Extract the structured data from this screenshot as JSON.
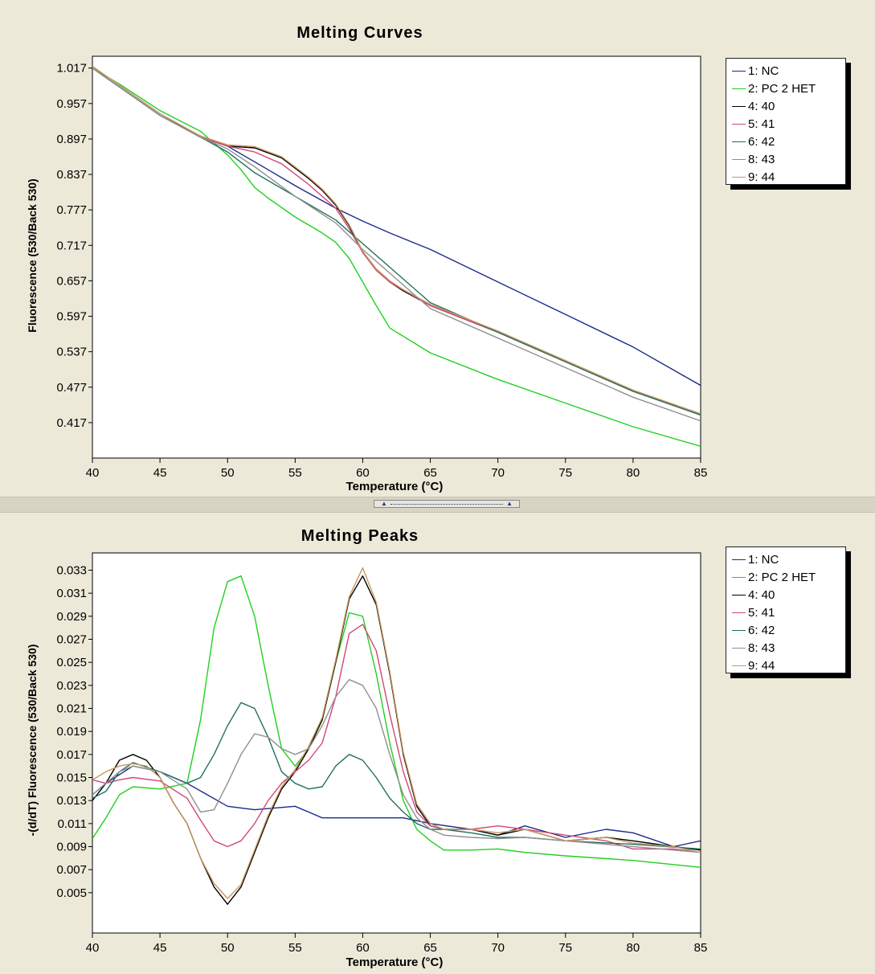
{
  "chart_data": [
    {
      "type": "line",
      "title": "Melting Curves",
      "xlabel": "Temperature (°C)",
      "ylabel": "Fluorescence (530/Back 530)",
      "xlim": [
        40,
        85
      ],
      "ylim": [
        0.357,
        1.037
      ],
      "xticks": [
        "40",
        "45",
        "50",
        "55",
        "60",
        "65",
        "70",
        "75",
        "80",
        "85"
      ],
      "yticks": [
        "1.017",
        "0.957",
        "0.897",
        "0.837",
        "0.777",
        "0.717",
        "0.657",
        "0.597",
        "0.537",
        "0.477",
        "0.417"
      ],
      "legend": "right",
      "series": [
        {
          "name": "1: NC",
          "color": "#1a2a8c",
          "x": [
            40,
            42,
            45,
            48,
            50,
            53,
            55,
            58,
            60,
            62,
            65,
            70,
            75,
            80,
            85
          ],
          "y": [
            1.017,
            0.985,
            0.937,
            0.902,
            0.885,
            0.845,
            0.818,
            0.78,
            0.758,
            0.738,
            0.71,
            0.655,
            0.6,
            0.545,
            0.48
          ]
        },
        {
          "name": "2: PC 2 HET",
          "color": "#20d020",
          "x": [
            40,
            42,
            45,
            48,
            50,
            51,
            52,
            53,
            55,
            57,
            58,
            59,
            60,
            61,
            62,
            65,
            70,
            75,
            80,
            85
          ],
          "y": [
            1.017,
            0.99,
            0.945,
            0.91,
            0.87,
            0.845,
            0.815,
            0.797,
            0.765,
            0.738,
            0.722,
            0.695,
            0.655,
            0.615,
            0.577,
            0.535,
            0.49,
            0.45,
            0.41,
            0.377
          ]
        },
        {
          "name": "4: 40",
          "color": "#000000",
          "x": [
            40,
            42,
            45,
            48,
            50,
            52,
            54,
            56,
            57,
            58,
            59,
            60,
            61,
            62,
            63,
            65,
            70,
            75,
            80,
            85
          ],
          "y": [
            1.017,
            0.985,
            0.937,
            0.9,
            0.885,
            0.882,
            0.865,
            0.83,
            0.81,
            0.785,
            0.75,
            0.705,
            0.675,
            0.655,
            0.64,
            0.615,
            0.57,
            0.52,
            0.47,
            0.43
          ]
        },
        {
          "name": "5: 41",
          "color": "#d04878",
          "x": [
            40,
            42,
            45,
            48,
            50,
            52,
            54,
            56,
            58,
            59,
            60,
            61,
            62,
            65,
            70,
            75,
            80,
            85
          ],
          "y": [
            1.017,
            0.985,
            0.937,
            0.9,
            0.885,
            0.875,
            0.855,
            0.82,
            0.78,
            0.745,
            0.705,
            0.675,
            0.655,
            0.615,
            0.57,
            0.52,
            0.47,
            0.43
          ]
        },
        {
          "name": "6: 42",
          "color": "#207060",
          "x": [
            40,
            42,
            45,
            48,
            50,
            52,
            55,
            58,
            60,
            62,
            65,
            70,
            75,
            80,
            85
          ],
          "y": [
            1.017,
            0.985,
            0.937,
            0.9,
            0.875,
            0.84,
            0.8,
            0.76,
            0.72,
            0.68,
            0.62,
            0.57,
            0.52,
            0.47,
            0.43
          ]
        },
        {
          "name": "8: 43",
          "color": "#909090",
          "x": [
            40,
            42,
            45,
            48,
            50,
            52,
            55,
            58,
            60,
            62,
            65,
            70,
            75,
            80,
            85
          ],
          "y": [
            1.017,
            0.985,
            0.937,
            0.9,
            0.88,
            0.85,
            0.8,
            0.755,
            0.71,
            0.67,
            0.61,
            0.56,
            0.51,
            0.46,
            0.42
          ]
        },
        {
          "name": "9: 44",
          "color": "#c89860",
          "x": [
            40,
            42,
            45,
            48,
            50,
            52,
            54,
            56,
            57,
            58,
            59,
            60,
            61,
            62,
            63,
            65,
            70,
            75,
            80,
            85
          ],
          "y": [
            1.02,
            0.988,
            0.94,
            0.902,
            0.887,
            0.884,
            0.867,
            0.832,
            0.812,
            0.787,
            0.752,
            0.707,
            0.677,
            0.657,
            0.642,
            0.617,
            0.572,
            0.522,
            0.472,
            0.432
          ]
        }
      ]
    },
    {
      "type": "line",
      "title": "Melting Peaks",
      "xlabel": "Temperature (°C)",
      "ylabel": "-(d/dT) Fluorescence (530/Back 530)",
      "xlim": [
        40,
        85
      ],
      "ylim": [
        0.0015,
        0.0345
      ],
      "xticks": [
        "40",
        "45",
        "50",
        "55",
        "60",
        "65",
        "70",
        "75",
        "80",
        "85"
      ],
      "yticks": [
        "0.033",
        "0.031",
        "0.029",
        "0.027",
        "0.025",
        "0.023",
        "0.021",
        "0.019",
        "0.017",
        "0.015",
        "0.013",
        "0.011",
        "0.009",
        "0.007",
        "0.005"
      ],
      "legend": "right",
      "series": [
        {
          "name": "1: NC",
          "color": "#1a2a8c",
          "x": [
            40,
            41,
            43,
            45,
            47,
            50,
            52,
            55,
            57,
            60,
            63,
            65,
            68,
            70,
            72,
            75,
            78,
            80,
            83,
            85
          ],
          "y": [
            0.0135,
            0.0145,
            0.016,
            0.0155,
            0.0145,
            0.0125,
            0.0122,
            0.0125,
            0.0115,
            0.0115,
            0.0115,
            0.011,
            0.0105,
            0.01,
            0.0108,
            0.0098,
            0.0105,
            0.0102,
            0.009,
            0.0095
          ]
        },
        {
          "name": "2: PC 2 HET",
          "color": "#20d020",
          "x": [
            40,
            41,
            42,
            43,
            45,
            47,
            48,
            49,
            50,
            51,
            52,
            53,
            54,
            55,
            56,
            57,
            58,
            59,
            60,
            61,
            62,
            63,
            64,
            65,
            66,
            68,
            70,
            72,
            75,
            80,
            85
          ],
          "y": [
            0.0097,
            0.0115,
            0.0135,
            0.0142,
            0.014,
            0.0145,
            0.02,
            0.028,
            0.032,
            0.0325,
            0.029,
            0.023,
            0.0175,
            0.016,
            0.0175,
            0.02,
            0.025,
            0.0293,
            0.029,
            0.024,
            0.018,
            0.013,
            0.0105,
            0.0095,
            0.0087,
            0.0087,
            0.0088,
            0.0085,
            0.0082,
            0.0078,
            0.0072
          ]
        },
        {
          "name": "4: 40",
          "color": "#000000",
          "x": [
            40,
            41,
            42,
            43,
            44,
            45,
            46,
            47,
            48,
            49,
            50,
            51,
            52,
            53,
            54,
            55,
            56,
            57,
            58,
            59,
            60,
            61,
            62,
            63,
            64,
            65,
            66,
            68,
            70,
            72,
            75,
            78,
            80,
            83,
            85
          ],
          "y": [
            0.013,
            0.0145,
            0.0165,
            0.017,
            0.0165,
            0.015,
            0.0128,
            0.011,
            0.008,
            0.0055,
            0.004,
            0.0055,
            0.0085,
            0.0115,
            0.014,
            0.0155,
            0.0175,
            0.02,
            0.025,
            0.0305,
            0.0325,
            0.03,
            0.024,
            0.017,
            0.0125,
            0.0108,
            0.0105,
            0.0105,
            0.01,
            0.0105,
            0.0095,
            0.0098,
            0.0095,
            0.009,
            0.0087
          ]
        },
        {
          "name": "5: 41",
          "color": "#d04878",
          "x": [
            40,
            41,
            42,
            43,
            45,
            47,
            48,
            49,
            50,
            51,
            52,
            53,
            54,
            55,
            56,
            57,
            58,
            59,
            60,
            61,
            62,
            63,
            64,
            65,
            66,
            68,
            70,
            72,
            75,
            78,
            80,
            83,
            85
          ],
          "y": [
            0.0148,
            0.0145,
            0.0148,
            0.015,
            0.0147,
            0.0132,
            0.0113,
            0.0095,
            0.009,
            0.0095,
            0.011,
            0.013,
            0.0145,
            0.0155,
            0.0165,
            0.018,
            0.022,
            0.0275,
            0.0283,
            0.026,
            0.0205,
            0.0155,
            0.012,
            0.0108,
            0.0105,
            0.0105,
            0.0108,
            0.0105,
            0.01,
            0.0095,
            0.0088,
            0.0088,
            0.0085
          ]
        },
        {
          "name": "6: 42",
          "color": "#207060",
          "x": [
            40,
            41,
            42,
            43,
            45,
            47,
            48,
            49,
            50,
            51,
            52,
            53,
            54,
            55,
            56,
            57,
            58,
            59,
            60,
            61,
            62,
            63,
            64,
            65,
            66,
            68,
            70,
            72,
            75,
            80,
            85
          ],
          "y": [
            0.0132,
            0.0138,
            0.0155,
            0.0163,
            0.0155,
            0.0145,
            0.015,
            0.017,
            0.0195,
            0.0215,
            0.021,
            0.0185,
            0.0155,
            0.0145,
            0.014,
            0.0142,
            0.016,
            0.017,
            0.0165,
            0.015,
            0.0132,
            0.012,
            0.011,
            0.0105,
            0.0105,
            0.0102,
            0.0098,
            0.0098,
            0.0095,
            0.0092,
            0.0088
          ]
        },
        {
          "name": "8: 43",
          "color": "#909090",
          "x": [
            40,
            42,
            43,
            45,
            47,
            48,
            49,
            50,
            51,
            52,
            53,
            54,
            55,
            56,
            57,
            58,
            59,
            60,
            61,
            62,
            63,
            64,
            65,
            66,
            68,
            70,
            72,
            75,
            78,
            80,
            85
          ],
          "y": [
            0.0135,
            0.0155,
            0.016,
            0.0155,
            0.014,
            0.012,
            0.0122,
            0.0145,
            0.017,
            0.0188,
            0.0185,
            0.0175,
            0.017,
            0.0175,
            0.0195,
            0.022,
            0.0235,
            0.023,
            0.021,
            0.017,
            0.0135,
            0.0115,
            0.0105,
            0.01,
            0.0098,
            0.0097,
            0.0098,
            0.0095,
            0.0092,
            0.009,
            0.0085
          ]
        },
        {
          "name": "9: 44",
          "color": "#c89860",
          "x": [
            40,
            41,
            42,
            43,
            44,
            45,
            46,
            47,
            48,
            49,
            50,
            51,
            52,
            53,
            54,
            55,
            56,
            57,
            58,
            59,
            60,
            61,
            62,
            63,
            64,
            65,
            66,
            68,
            70,
            72,
            75,
            78,
            80,
            83,
            85
          ],
          "y": [
            0.0148,
            0.0155,
            0.016,
            0.0162,
            0.016,
            0.015,
            0.0128,
            0.011,
            0.008,
            0.0058,
            0.0045,
            0.0057,
            0.0087,
            0.0117,
            0.0142,
            0.0157,
            0.0177,
            0.0202,
            0.0252,
            0.0307,
            0.0332,
            0.0302,
            0.0242,
            0.0172,
            0.0127,
            0.011,
            0.0105,
            0.0105,
            0.0102,
            0.0105,
            0.0095,
            0.0098,
            0.0093,
            0.009,
            0.0085
          ]
        }
      ]
    }
  ]
}
